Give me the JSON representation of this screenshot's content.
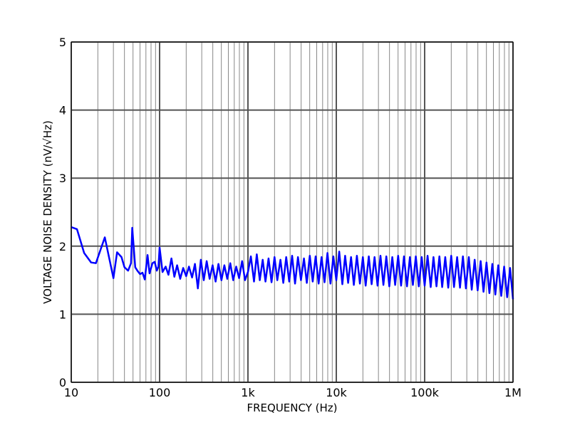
{
  "chart_data": {
    "type": "line",
    "xlabel": "FREQUENCY (Hz)",
    "ylabel": "VOLTAGE NOISE DENSITY (nV/√Hz)",
    "x_scale": "log",
    "xlim": [
      10,
      1000000
    ],
    "ylim": [
      0,
      5
    ],
    "x_ticks": [
      10,
      100,
      1000,
      10000,
      100000,
      1000000
    ],
    "x_tick_labels": [
      "10",
      "100",
      "1k",
      "10k",
      "100k",
      "1M"
    ],
    "y_ticks": [
      0,
      1,
      2,
      3,
      4,
      5
    ],
    "y_tick_labels": [
      "0",
      "1",
      "2",
      "3",
      "4",
      "5"
    ],
    "grid": true,
    "series": [
      {
        "color": "#0000ff",
        "x": [
          10,
          11.6,
          14,
          16.8,
          19,
          24,
          30,
          33,
          37,
          40,
          44,
          47.5,
          49,
          53,
          56,
          60,
          64,
          68,
          73,
          77,
          83,
          88,
          93,
          97,
          100,
          108,
          117,
          126,
          136,
          147,
          158,
          171,
          185,
          200,
          215,
          233,
          251,
          271,
          293,
          316,
          341,
          368,
          398,
          430,
          464,
          501,
          541,
          584,
          631,
          681,
          736,
          794,
          858,
          926,
          1000,
          1080,
          1170,
          1260,
          1360,
          1470,
          1580,
          1710,
          1850,
          2000,
          2150,
          2330,
          2510,
          2710,
          2930,
          3160,
          3410,
          3680,
          3980,
          4300,
          4640,
          5010,
          5410,
          5840,
          6310,
          6810,
          7360,
          7940,
          8580,
          9260,
          10000,
          10800,
          11700,
          12600,
          13600,
          14700,
          15800,
          17100,
          18500,
          20000,
          21500,
          23300,
          25100,
          27100,
          29300,
          31600,
          34100,
          36800,
          39800,
          43000,
          46400,
          50100,
          54100,
          58400,
          63100,
          68100,
          73600,
          79400,
          85800,
          92600,
          100000,
          108000,
          117000,
          126000,
          136000,
          147000,
          158000,
          171000,
          185000,
          200000,
          215000,
          233000,
          251000,
          271000,
          293000,
          316000,
          341000,
          368000,
          398000,
          430000,
          464000,
          501000,
          541000,
          584000,
          631000,
          681000,
          736000,
          794000,
          858000,
          926000,
          1000000
        ],
        "y": [
          2.28,
          2.25,
          1.9,
          1.76,
          1.75,
          2.13,
          1.53,
          1.91,
          1.84,
          1.69,
          1.64,
          1.75,
          2.27,
          1.69,
          1.64,
          1.59,
          1.61,
          1.51,
          1.87,
          1.6,
          1.75,
          1.77,
          1.64,
          1.7,
          1.98,
          1.62,
          1.7,
          1.58,
          1.82,
          1.55,
          1.72,
          1.52,
          1.68,
          1.56,
          1.7,
          1.54,
          1.74,
          1.38,
          1.8,
          1.5,
          1.78,
          1.52,
          1.72,
          1.48,
          1.74,
          1.5,
          1.72,
          1.52,
          1.75,
          1.5,
          1.7,
          1.53,
          1.78,
          1.5,
          1.62,
          1.85,
          1.48,
          1.88,
          1.5,
          1.8,
          1.48,
          1.82,
          1.47,
          1.84,
          1.5,
          1.8,
          1.46,
          1.84,
          1.48,
          1.86,
          1.45,
          1.84,
          1.5,
          1.82,
          1.46,
          1.86,
          1.48,
          1.85,
          1.45,
          1.84,
          1.47,
          1.9,
          1.45,
          1.85,
          1.5,
          1.92,
          1.44,
          1.86,
          1.46,
          1.84,
          1.43,
          1.86,
          1.45,
          1.84,
          1.42,
          1.85,
          1.44,
          1.84,
          1.42,
          1.86,
          1.43,
          1.85,
          1.41,
          1.84,
          1.43,
          1.86,
          1.42,
          1.85,
          1.41,
          1.84,
          1.43,
          1.85,
          1.41,
          1.84,
          1.42,
          1.86,
          1.4,
          1.84,
          1.41,
          1.85,
          1.4,
          1.84,
          1.39,
          1.86,
          1.4,
          1.84,
          1.39,
          1.85,
          1.38,
          1.84,
          1.36,
          1.8,
          1.35,
          1.78,
          1.33,
          1.76,
          1.31,
          1.74,
          1.29,
          1.72,
          1.27,
          1.7,
          1.25,
          1.68,
          1.22
        ]
      }
    ]
  }
}
